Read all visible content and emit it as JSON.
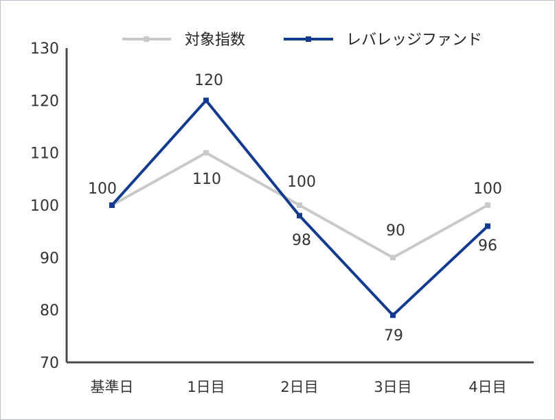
{
  "chart_data": {
    "type": "line",
    "categories": [
      "基準日",
      "1日目",
      "2日目",
      "3日目",
      "4日目"
    ],
    "series": [
      {
        "name": "対象指数",
        "values": [
          100,
          110,
          100,
          90,
          100
        ],
        "color": "#c9c9c9"
      },
      {
        "name": "レバレッジファンド",
        "values": [
          100,
          120,
          98,
          79,
          96
        ],
        "color": "#123a8f"
      }
    ],
    "data_labels": {
      "対象指数": [
        "100",
        "110",
        "100",
        "90",
        "100"
      ],
      "レバレッジファンド": [
        "",
        "120",
        "98",
        "79",
        "96"
      ]
    },
    "ylim": [
      70,
      130
    ],
    "yticks": [
      "70",
      "80",
      "90",
      "100",
      "110",
      "120",
      "130"
    ],
    "grid": false,
    "legend_position": "top-center",
    "title": "",
    "xlabel": "",
    "ylabel": ""
  }
}
